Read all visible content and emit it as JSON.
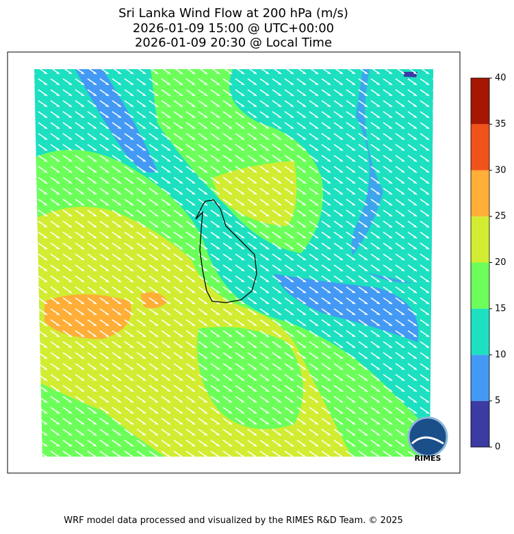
{
  "header": {
    "title": "Sri Lanka Wind Flow at 200 hPa (m/s)",
    "line2": "2026-01-09 15:00 @ UTC+00:00",
    "line3": "2026-01-09 20:30 @ Local Time"
  },
  "colorbar": {
    "levels": [
      0,
      5,
      10,
      15,
      20,
      25,
      30,
      35,
      40
    ],
    "colors": [
      "#3b3ba3",
      "#4499f5",
      "#1de0c0",
      "#6cff5a",
      "#d2ec32",
      "#ffae38",
      "#f0521a",
      "#a51700"
    ]
  },
  "logo": {
    "text": "RIMES"
  },
  "footer": "WRF model data processed and visualized by the RIMES R&D Team. © 2025"
}
